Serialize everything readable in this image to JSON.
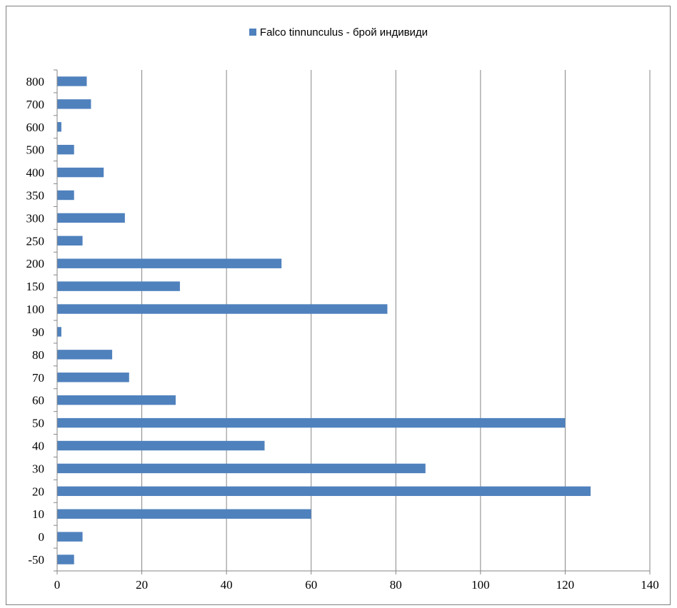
{
  "chart_data": {
    "type": "bar",
    "orientation": "horizontal",
    "categories": [
      "-50",
      "0",
      "10",
      "20",
      "30",
      "40",
      "50",
      "60",
      "70",
      "80",
      "90",
      "100",
      "150",
      "200",
      "250",
      "300",
      "350",
      "400",
      "500",
      "600",
      "700",
      "800"
    ],
    "series": [
      {
        "name": "Falco tinnunculus - брой индивиди",
        "values": [
          4,
          6,
          60,
          126,
          87,
          49,
          120,
          28,
          17,
          13,
          1,
          78,
          29,
          53,
          6,
          16,
          4,
          11,
          4,
          1,
          8,
          7
        ]
      }
    ],
    "xlim": [
      0,
      140
    ],
    "xticks": [
      "0",
      "20",
      "40",
      "60",
      "80",
      "100",
      "120",
      "140"
    ],
    "grid": "vertical major gridlines",
    "legend_position": "top",
    "colors": {
      "bar": "#4f81bd",
      "grid": "#868686",
      "axis": "#868686"
    }
  }
}
